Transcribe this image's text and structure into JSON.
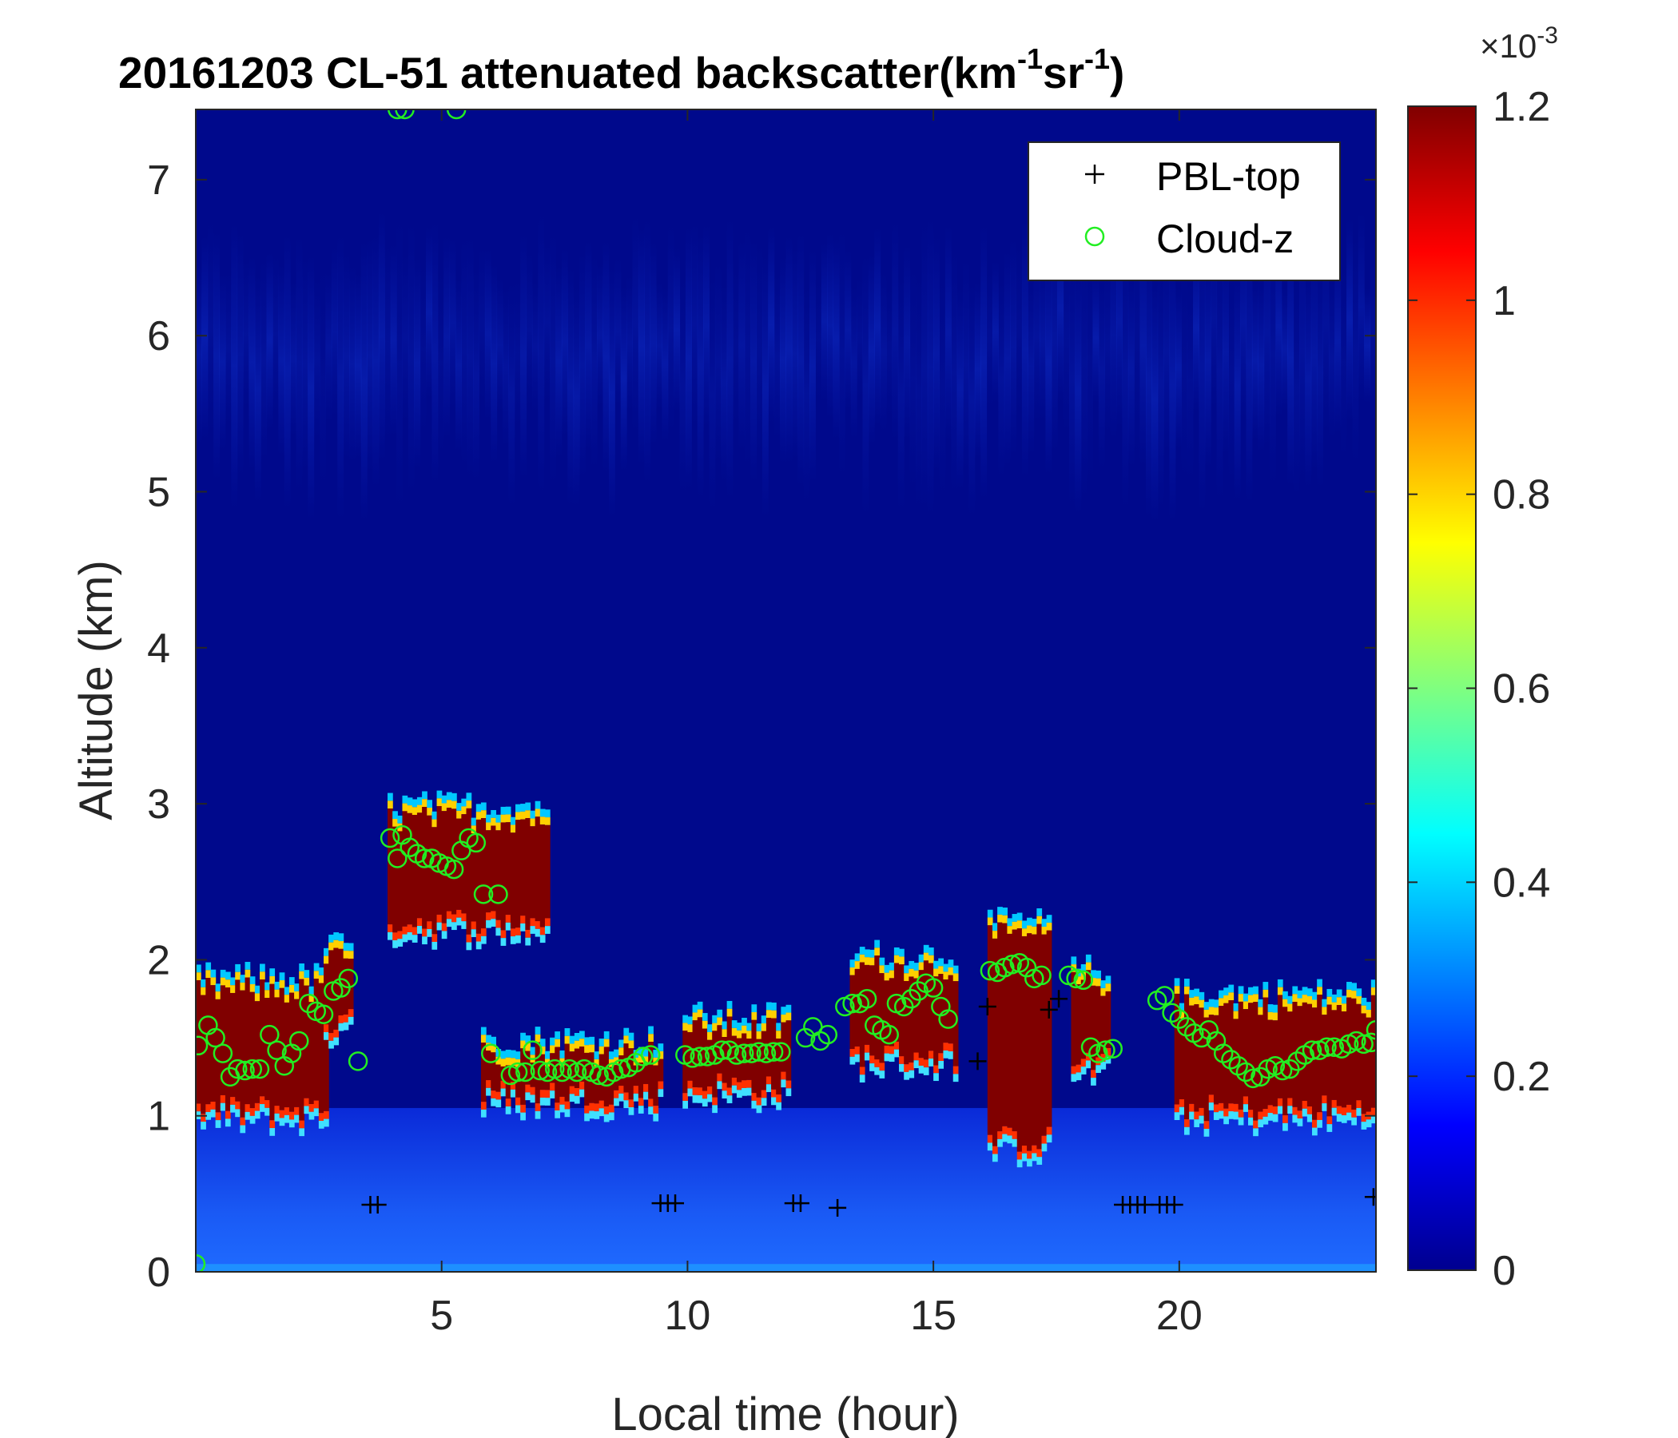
{
  "chart_data": {
    "type": "heatmap",
    "title": {
      "prefix": "20161203  CL-51 attenuated backscatter(km",
      "sup1": "-1",
      "mid": "sr",
      "sup2": "-1",
      "suffix": ")"
    },
    "xlabel": "Local time (hour)",
    "ylabel": "Altitude (km)",
    "xlim": [
      0,
      24
    ],
    "ylim": [
      0,
      7.45
    ],
    "xticks": [
      5,
      10,
      15,
      20
    ],
    "yticks": [
      0,
      1,
      2,
      3,
      4,
      5,
      6,
      7
    ],
    "colorbar": {
      "multiplier_base": "×10",
      "multiplier_exp": "-3",
      "range": [
        0,
        1.2
      ],
      "ticks": [
        0,
        0.2,
        0.4,
        0.6,
        0.8,
        1,
        1.2
      ],
      "colormap": "jet"
    },
    "legend": {
      "position": "top-right",
      "entries": [
        {
          "label": "PBL-top",
          "marker": "+",
          "color": "#000000"
        },
        {
          "label": "Cloud-z",
          "marker": "o",
          "color": "#22ee22"
        }
      ]
    },
    "cloud_layers": [
      {
        "t_start": 0.0,
        "t_end": 2.7,
        "base_km": 1.0,
        "top_km": 1.85
      },
      {
        "t_start": 2.6,
        "t_end": 3.2,
        "base_km": 1.55,
        "top_km": 2.05
      },
      {
        "t_start": 3.9,
        "t_end": 7.1,
        "base_km": 2.2,
        "top_km": 2.95
      },
      {
        "t_start": 5.8,
        "t_end": 9.4,
        "base_km": 1.1,
        "top_km": 1.45
      },
      {
        "t_start": 9.9,
        "t_end": 12.0,
        "base_km": 1.15,
        "top_km": 1.6
      },
      {
        "t_start": 13.3,
        "t_end": 15.4,
        "base_km": 1.35,
        "top_km": 2.0
      },
      {
        "t_start": 16.1,
        "t_end": 17.4,
        "base_km": 0.8,
        "top_km": 2.2
      },
      {
        "t_start": 17.8,
        "t_end": 18.6,
        "base_km": 1.3,
        "top_km": 1.9
      },
      {
        "t_start": 19.9,
        "t_end": 24.0,
        "base_km": 1.0,
        "top_km": 1.75
      }
    ],
    "series": [
      {
        "name": "PBL-top",
        "points": [
          {
            "x": 3.55,
            "y": 0.43
          },
          {
            "x": 3.7,
            "y": 0.43
          },
          {
            "x": 9.45,
            "y": 0.44
          },
          {
            "x": 9.6,
            "y": 0.44
          },
          {
            "x": 9.75,
            "y": 0.44
          },
          {
            "x": 12.15,
            "y": 0.44
          },
          {
            "x": 12.3,
            "y": 0.44
          },
          {
            "x": 13.05,
            "y": 0.41
          },
          {
            "x": 15.9,
            "y": 1.35
          },
          {
            "x": 16.1,
            "y": 1.7
          },
          {
            "x": 17.35,
            "y": 1.68
          },
          {
            "x": 17.55,
            "y": 1.75
          },
          {
            "x": 18.85,
            "y": 0.43
          },
          {
            "x": 19.0,
            "y": 0.43
          },
          {
            "x": 19.15,
            "y": 0.43
          },
          {
            "x": 19.3,
            "y": 0.43
          },
          {
            "x": 19.6,
            "y": 0.43
          },
          {
            "x": 19.75,
            "y": 0.43
          },
          {
            "x": 19.9,
            "y": 0.43
          },
          {
            "x": 23.95,
            "y": 0.48
          }
        ]
      },
      {
        "name": "Cloud-z",
        "points": [
          {
            "x": 0.05,
            "y": 1.45
          },
          {
            "x": 0.25,
            "y": 1.58
          },
          {
            "x": 0.4,
            "y": 1.5
          },
          {
            "x": 0.55,
            "y": 1.4
          },
          {
            "x": 0.7,
            "y": 1.25
          },
          {
            "x": 0.85,
            "y": 1.3
          },
          {
            "x": 1.0,
            "y": 1.29
          },
          {
            "x": 1.15,
            "y": 1.3
          },
          {
            "x": 1.3,
            "y": 1.3
          },
          {
            "x": 1.5,
            "y": 1.52
          },
          {
            "x": 1.65,
            "y": 1.42
          },
          {
            "x": 1.8,
            "y": 1.32
          },
          {
            "x": 1.95,
            "y": 1.4
          },
          {
            "x": 2.1,
            "y": 1.48
          },
          {
            "x": 2.3,
            "y": 1.72
          },
          {
            "x": 2.45,
            "y": 1.67
          },
          {
            "x": 2.6,
            "y": 1.65
          },
          {
            "x": 2.8,
            "y": 1.8
          },
          {
            "x": 2.95,
            "y": 1.82
          },
          {
            "x": 3.1,
            "y": 1.88
          },
          {
            "x": 3.3,
            "y": 1.35
          },
          {
            "x": 3.95,
            "y": 2.78
          },
          {
            "x": 4.1,
            "y": 2.65
          },
          {
            "x": 4.2,
            "y": 2.8
          },
          {
            "x": 4.35,
            "y": 2.72
          },
          {
            "x": 4.5,
            "y": 2.68
          },
          {
            "x": 4.65,
            "y": 2.65
          },
          {
            "x": 4.8,
            "y": 2.65
          },
          {
            "x": 4.95,
            "y": 2.62
          },
          {
            "x": 5.1,
            "y": 2.6
          },
          {
            "x": 5.25,
            "y": 2.58
          },
          {
            "x": 5.4,
            "y": 2.7
          },
          {
            "x": 5.55,
            "y": 2.78
          },
          {
            "x": 5.7,
            "y": 2.75
          },
          {
            "x": 5.85,
            "y": 2.42
          },
          {
            "x": 6.15,
            "y": 2.42
          },
          {
            "x": 6.0,
            "y": 1.4
          },
          {
            "x": 6.4,
            "y": 1.26
          },
          {
            "x": 6.55,
            "y": 1.28
          },
          {
            "x": 6.7,
            "y": 1.28
          },
          {
            "x": 6.85,
            "y": 1.42
          },
          {
            "x": 7.0,
            "y": 1.29
          },
          {
            "x": 7.15,
            "y": 1.28
          },
          {
            "x": 7.3,
            "y": 1.3
          },
          {
            "x": 7.45,
            "y": 1.28
          },
          {
            "x": 7.6,
            "y": 1.3
          },
          {
            "x": 7.75,
            "y": 1.28
          },
          {
            "x": 7.9,
            "y": 1.3
          },
          {
            "x": 8.05,
            "y": 1.28
          },
          {
            "x": 8.2,
            "y": 1.26
          },
          {
            "x": 8.35,
            "y": 1.25
          },
          {
            "x": 8.5,
            "y": 1.28
          },
          {
            "x": 8.65,
            "y": 1.3
          },
          {
            "x": 8.8,
            "y": 1.31
          },
          {
            "x": 8.95,
            "y": 1.34
          },
          {
            "x": 9.1,
            "y": 1.38
          },
          {
            "x": 9.25,
            "y": 1.39
          },
          {
            "x": 9.95,
            "y": 1.39
          },
          {
            "x": 10.1,
            "y": 1.37
          },
          {
            "x": 10.25,
            "y": 1.38
          },
          {
            "x": 10.4,
            "y": 1.38
          },
          {
            "x": 10.55,
            "y": 1.39
          },
          {
            "x": 10.7,
            "y": 1.42
          },
          {
            "x": 10.85,
            "y": 1.42
          },
          {
            "x": 11.0,
            "y": 1.39
          },
          {
            "x": 11.15,
            "y": 1.4
          },
          {
            "x": 11.3,
            "y": 1.4
          },
          {
            "x": 11.45,
            "y": 1.41
          },
          {
            "x": 11.6,
            "y": 1.4
          },
          {
            "x": 11.75,
            "y": 1.41
          },
          {
            "x": 11.9,
            "y": 1.41
          },
          {
            "x": 12.4,
            "y": 1.5
          },
          {
            "x": 12.55,
            "y": 1.57
          },
          {
            "x": 12.7,
            "y": 1.48
          },
          {
            "x": 12.85,
            "y": 1.52
          },
          {
            "x": 13.2,
            "y": 1.7
          },
          {
            "x": 13.35,
            "y": 1.72
          },
          {
            "x": 13.5,
            "y": 1.72
          },
          {
            "x": 13.65,
            "y": 1.75
          },
          {
            "x": 13.8,
            "y": 1.58
          },
          {
            "x": 13.95,
            "y": 1.55
          },
          {
            "x": 14.1,
            "y": 1.52
          },
          {
            "x": 14.25,
            "y": 1.72
          },
          {
            "x": 14.4,
            "y": 1.7
          },
          {
            "x": 14.55,
            "y": 1.75
          },
          {
            "x": 14.7,
            "y": 1.8
          },
          {
            "x": 14.85,
            "y": 1.85
          },
          {
            "x": 15.0,
            "y": 1.82
          },
          {
            "x": 15.15,
            "y": 1.7
          },
          {
            "x": 15.3,
            "y": 1.62
          },
          {
            "x": 16.15,
            "y": 1.93
          },
          {
            "x": 16.3,
            "y": 1.92
          },
          {
            "x": 16.45,
            "y": 1.95
          },
          {
            "x": 16.6,
            "y": 1.97
          },
          {
            "x": 16.75,
            "y": 1.98
          },
          {
            "x": 16.9,
            "y": 1.95
          },
          {
            "x": 17.05,
            "y": 1.88
          },
          {
            "x": 17.2,
            "y": 1.9
          },
          {
            "x": 17.75,
            "y": 1.9
          },
          {
            "x": 17.9,
            "y": 1.88
          },
          {
            "x": 18.05,
            "y": 1.87
          },
          {
            "x": 18.2,
            "y": 1.44
          },
          {
            "x": 18.35,
            "y": 1.4
          },
          {
            "x": 18.5,
            "y": 1.42
          },
          {
            "x": 18.65,
            "y": 1.43
          },
          {
            "x": 19.55,
            "y": 1.74
          },
          {
            "x": 19.7,
            "y": 1.77
          },
          {
            "x": 19.85,
            "y": 1.66
          },
          {
            "x": 20.0,
            "y": 1.62
          },
          {
            "x": 20.15,
            "y": 1.57
          },
          {
            "x": 20.3,
            "y": 1.53
          },
          {
            "x": 20.45,
            "y": 1.5
          },
          {
            "x": 20.6,
            "y": 1.55
          },
          {
            "x": 20.75,
            "y": 1.48
          },
          {
            "x": 20.9,
            "y": 1.4
          },
          {
            "x": 21.05,
            "y": 1.36
          },
          {
            "x": 21.2,
            "y": 1.32
          },
          {
            "x": 21.35,
            "y": 1.28
          },
          {
            "x": 21.5,
            "y": 1.24
          },
          {
            "x": 21.65,
            "y": 1.25
          },
          {
            "x": 21.8,
            "y": 1.3
          },
          {
            "x": 21.95,
            "y": 1.32
          },
          {
            "x": 22.1,
            "y": 1.29
          },
          {
            "x": 22.25,
            "y": 1.3
          },
          {
            "x": 22.4,
            "y": 1.35
          },
          {
            "x": 22.55,
            "y": 1.39
          },
          {
            "x": 22.7,
            "y": 1.42
          },
          {
            "x": 22.85,
            "y": 1.42
          },
          {
            "x": 23.0,
            "y": 1.44
          },
          {
            "x": 23.15,
            "y": 1.44
          },
          {
            "x": 23.3,
            "y": 1.43
          },
          {
            "x": 23.45,
            "y": 1.46
          },
          {
            "x": 23.6,
            "y": 1.48
          },
          {
            "x": 23.75,
            "y": 1.46
          },
          {
            "x": 23.9,
            "y": 1.47
          },
          {
            "x": 24.0,
            "y": 1.55
          },
          {
            "x": 0.0,
            "y": 0.05
          },
          {
            "x": 4.1,
            "y": 7.45
          },
          {
            "x": 4.25,
            "y": 7.45
          },
          {
            "x": 5.3,
            "y": 7.45
          }
        ]
      }
    ]
  }
}
